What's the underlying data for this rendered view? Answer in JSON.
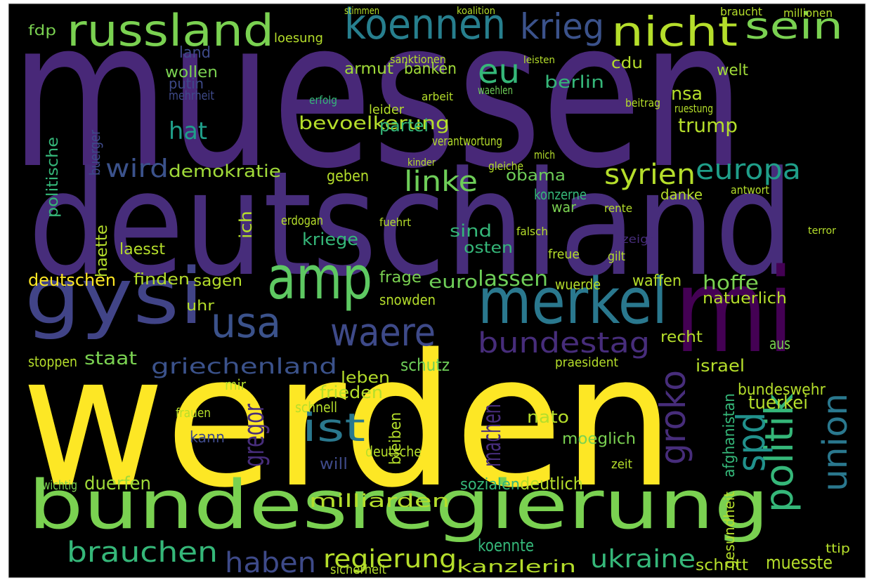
{
  "words": [
    {
      "text": "muessen",
      "color": "#482878"
    },
    {
      "text": "deutschland",
      "color": "#472d7b"
    },
    {
      "text": "werden",
      "color": "#fde725"
    },
    {
      "text": "bundesregierung",
      "color": "#7ad151"
    },
    {
      "text": "mi",
      "color": "#440154"
    },
    {
      "text": "gysi",
      "color": "#414487"
    },
    {
      "text": "merkel",
      "color": "#2a788e"
    },
    {
      "text": "amp",
      "color": "#5ec962"
    },
    {
      "text": "usa",
      "color": "#3b528b"
    },
    {
      "text": "waere",
      "color": "#3e4a89"
    },
    {
      "text": "russland",
      "color": "#7ad151"
    },
    {
      "text": "koennen",
      "color": "#277f8e"
    },
    {
      "text": "krieg",
      "color": "#3b528b"
    },
    {
      "text": "nicht",
      "color": "#b5de2b"
    },
    {
      "text": "sein",
      "color": "#7ad151"
    },
    {
      "text": "eu",
      "color": "#35b779"
    },
    {
      "text": "politik",
      "color": "#35b779"
    },
    {
      "text": "spd",
      "color": "#21918c"
    },
    {
      "text": "union",
      "color": "#2a788e"
    },
    {
      "text": "groko",
      "color": "#472d7b"
    },
    {
      "text": "europa",
      "color": "#1f9e89"
    },
    {
      "text": "syrien",
      "color": "#b5de2b"
    },
    {
      "text": "linke",
      "color": "#6ece58"
    },
    {
      "text": "wird",
      "color": "#3b528b"
    },
    {
      "text": "bundestag",
      "color": "#472d7b"
    },
    {
      "text": "griechenland",
      "color": "#3b528b"
    },
    {
      "text": "ist",
      "color": "#2a788e"
    },
    {
      "text": "brauchen",
      "color": "#35b779"
    },
    {
      "text": "haben",
      "color": "#3e4a89"
    },
    {
      "text": "regierung",
      "color": "#b5de2b"
    },
    {
      "text": "ukraine",
      "color": "#35b779"
    },
    {
      "text": "kanzlerin",
      "color": "#b5de2b"
    },
    {
      "text": "milliarden",
      "color": "#b5de2b"
    },
    {
      "text": "gregor",
      "color": "#472d7b"
    },
    {
      "text": "machen",
      "color": "#472d7b"
    },
    {
      "text": "hat",
      "color": "#1f9e89"
    },
    {
      "text": "bevoelkerung",
      "color": "#b5de2b"
    },
    {
      "text": "trump",
      "color": "#b5de2b"
    },
    {
      "text": "berlin",
      "color": "#35b779"
    },
    {
      "text": "nsa",
      "color": "#b5de2b"
    },
    {
      "text": "demokratie",
      "color": "#a0da39"
    },
    {
      "text": "obama",
      "color": "#6ece58"
    },
    {
      "text": "hoffe",
      "color": "#7ad151"
    },
    {
      "text": "staat",
      "color": "#7ad151"
    },
    {
      "text": "deutschen",
      "color": "#fde725"
    },
    {
      "text": "finden",
      "color": "#b5de2b"
    },
    {
      "text": "sagen",
      "color": "#b5de2b"
    },
    {
      "text": "lassen",
      "color": "#6ece58"
    },
    {
      "text": "euro",
      "color": "#6ece58"
    },
    {
      "text": "wollen",
      "color": "#7ad151"
    },
    {
      "text": "partei",
      "color": "#35b779"
    },
    {
      "text": "armut",
      "color": "#a0da39"
    },
    {
      "text": "banken",
      "color": "#a0da39"
    },
    {
      "text": "frieden",
      "color": "#b5de2b"
    },
    {
      "text": "bundeswehr",
      "color": "#b5de2b"
    },
    {
      "text": "nato",
      "color": "#b5de2b"
    },
    {
      "text": "tuerkei",
      "color": "#b5de2b"
    },
    {
      "text": "moeglich",
      "color": "#7ad151"
    },
    {
      "text": "deutlich",
      "color": "#b5de2b"
    },
    {
      "text": "duerfen",
      "color": "#a0da39"
    },
    {
      "text": "sozialen",
      "color": "#35b779"
    },
    {
      "text": "koennte",
      "color": "#35b779"
    },
    {
      "text": "muesste",
      "color": "#b5de2b"
    },
    {
      "text": "schritt",
      "color": "#b5de2b"
    },
    {
      "text": "israel",
      "color": "#b5de2b"
    },
    {
      "text": "schutz",
      "color": "#6ece58"
    },
    {
      "text": "leben",
      "color": "#b5de2b"
    },
    {
      "text": "kriege",
      "color": "#35b779"
    },
    {
      "text": "osten",
      "color": "#35b779"
    },
    {
      "text": "sind",
      "color": "#35b779"
    },
    {
      "text": "konzerne",
      "color": "#35b779"
    },
    {
      "text": "danke",
      "color": "#b5de2b"
    },
    {
      "text": "snowden",
      "color": "#b5de2b"
    },
    {
      "text": "laesst",
      "color": "#b5de2b"
    },
    {
      "text": "frage",
      "color": "#7ad151"
    },
    {
      "text": "war",
      "color": "#7ad151"
    },
    {
      "text": "welt",
      "color": "#a0da39"
    },
    {
      "text": "cdu",
      "color": "#b5de2b"
    },
    {
      "text": "putin",
      "color": "#3e4a89"
    },
    {
      "text": "land",
      "color": "#3e4a89"
    },
    {
      "text": "fdp",
      "color": "#7ad151"
    },
    {
      "text": "haette",
      "color": "#b5de2b"
    },
    {
      "text": "ich",
      "color": "#b5de2b"
    },
    {
      "text": "uhr",
      "color": "#b5de2b"
    },
    {
      "text": "will",
      "color": "#3e4a89"
    },
    {
      "text": "bleiben",
      "color": "#b5de2b"
    },
    {
      "text": "kann",
      "color": "#3e4a89"
    },
    {
      "text": "deutsche",
      "color": "#b5de2b"
    },
    {
      "text": "zeit",
      "color": "#b5de2b"
    },
    {
      "text": "afghanistan",
      "color": "#35b779"
    },
    {
      "text": "gesundheit",
      "color": "#b5de2b"
    },
    {
      "text": "ttip",
      "color": "#b5de2b"
    },
    {
      "text": "aus",
      "color": "#7ad151"
    },
    {
      "text": "recht",
      "color": "#b5de2b"
    },
    {
      "text": "natuerlich",
      "color": "#b5de2b"
    },
    {
      "text": "waffen",
      "color": "#b5de2b"
    },
    {
      "text": "wuerde",
      "color": "#b5de2b"
    },
    {
      "text": "wichtig",
      "color": "#7ad151"
    },
    {
      "text": "frauen",
      "color": "#b5de2b"
    },
    {
      "text": "schnell",
      "color": "#b5de2b"
    },
    {
      "text": "sicherheit",
      "color": "#b5de2b"
    },
    {
      "text": "stoppen",
      "color": "#b5de2b"
    },
    {
      "text": "mir",
      "color": "#b5de2b"
    },
    {
      "text": "praesident",
      "color": "#b5de2b"
    },
    {
      "text": "mehrheit",
      "color": "#3e4a89"
    },
    {
      "text": "politische",
      "color": "#35b779"
    },
    {
      "text": "buerger",
      "color": "#3e4a89"
    },
    {
      "text": "loesung",
      "color": "#b5de2b"
    },
    {
      "text": "stimmen",
      "color": "#b5de2b"
    },
    {
      "text": "millionen",
      "color": "#b5de2b"
    },
    {
      "text": "braucht",
      "color": "#b5de2b"
    },
    {
      "text": "koalition",
      "color": "#b5de2b"
    },
    {
      "text": "sanktionen",
      "color": "#b5de2b"
    },
    {
      "text": "waehlen",
      "color": "#6ece58"
    },
    {
      "text": "leisten",
      "color": "#b5de2b"
    },
    {
      "text": "erfolg",
      "color": "#35b779"
    },
    {
      "text": "arbeit",
      "color": "#b5de2b"
    },
    {
      "text": "beitrag",
      "color": "#b5de2b"
    },
    {
      "text": "ruestung",
      "color": "#b5de2b"
    },
    {
      "text": "leider",
      "color": "#b5de2b"
    },
    {
      "text": "verantwortung",
      "color": "#b5de2b"
    },
    {
      "text": "mich",
      "color": "#b5de2b"
    },
    {
      "text": "kinder",
      "color": "#b5de2b"
    },
    {
      "text": "gleiche",
      "color": "#b5de2b"
    },
    {
      "text": "geben",
      "color": "#b5de2b"
    },
    {
      "text": "antwort",
      "color": "#b5de2b"
    },
    {
      "text": "rente",
      "color": "#b5de2b"
    },
    {
      "text": "erdogan",
      "color": "#b5de2b"
    },
    {
      "text": "fuehrt",
      "color": "#b5de2b"
    },
    {
      "text": "zeigt",
      "color": "#472d7b"
    },
    {
      "text": "gilt",
      "color": "#b5de2b"
    },
    {
      "text": "freue",
      "color": "#b5de2b"
    },
    {
      "text": "falsch",
      "color": "#b5de2b"
    },
    {
      "text": "terror",
      "color": "#b5de2b"
    }
  ]
}
